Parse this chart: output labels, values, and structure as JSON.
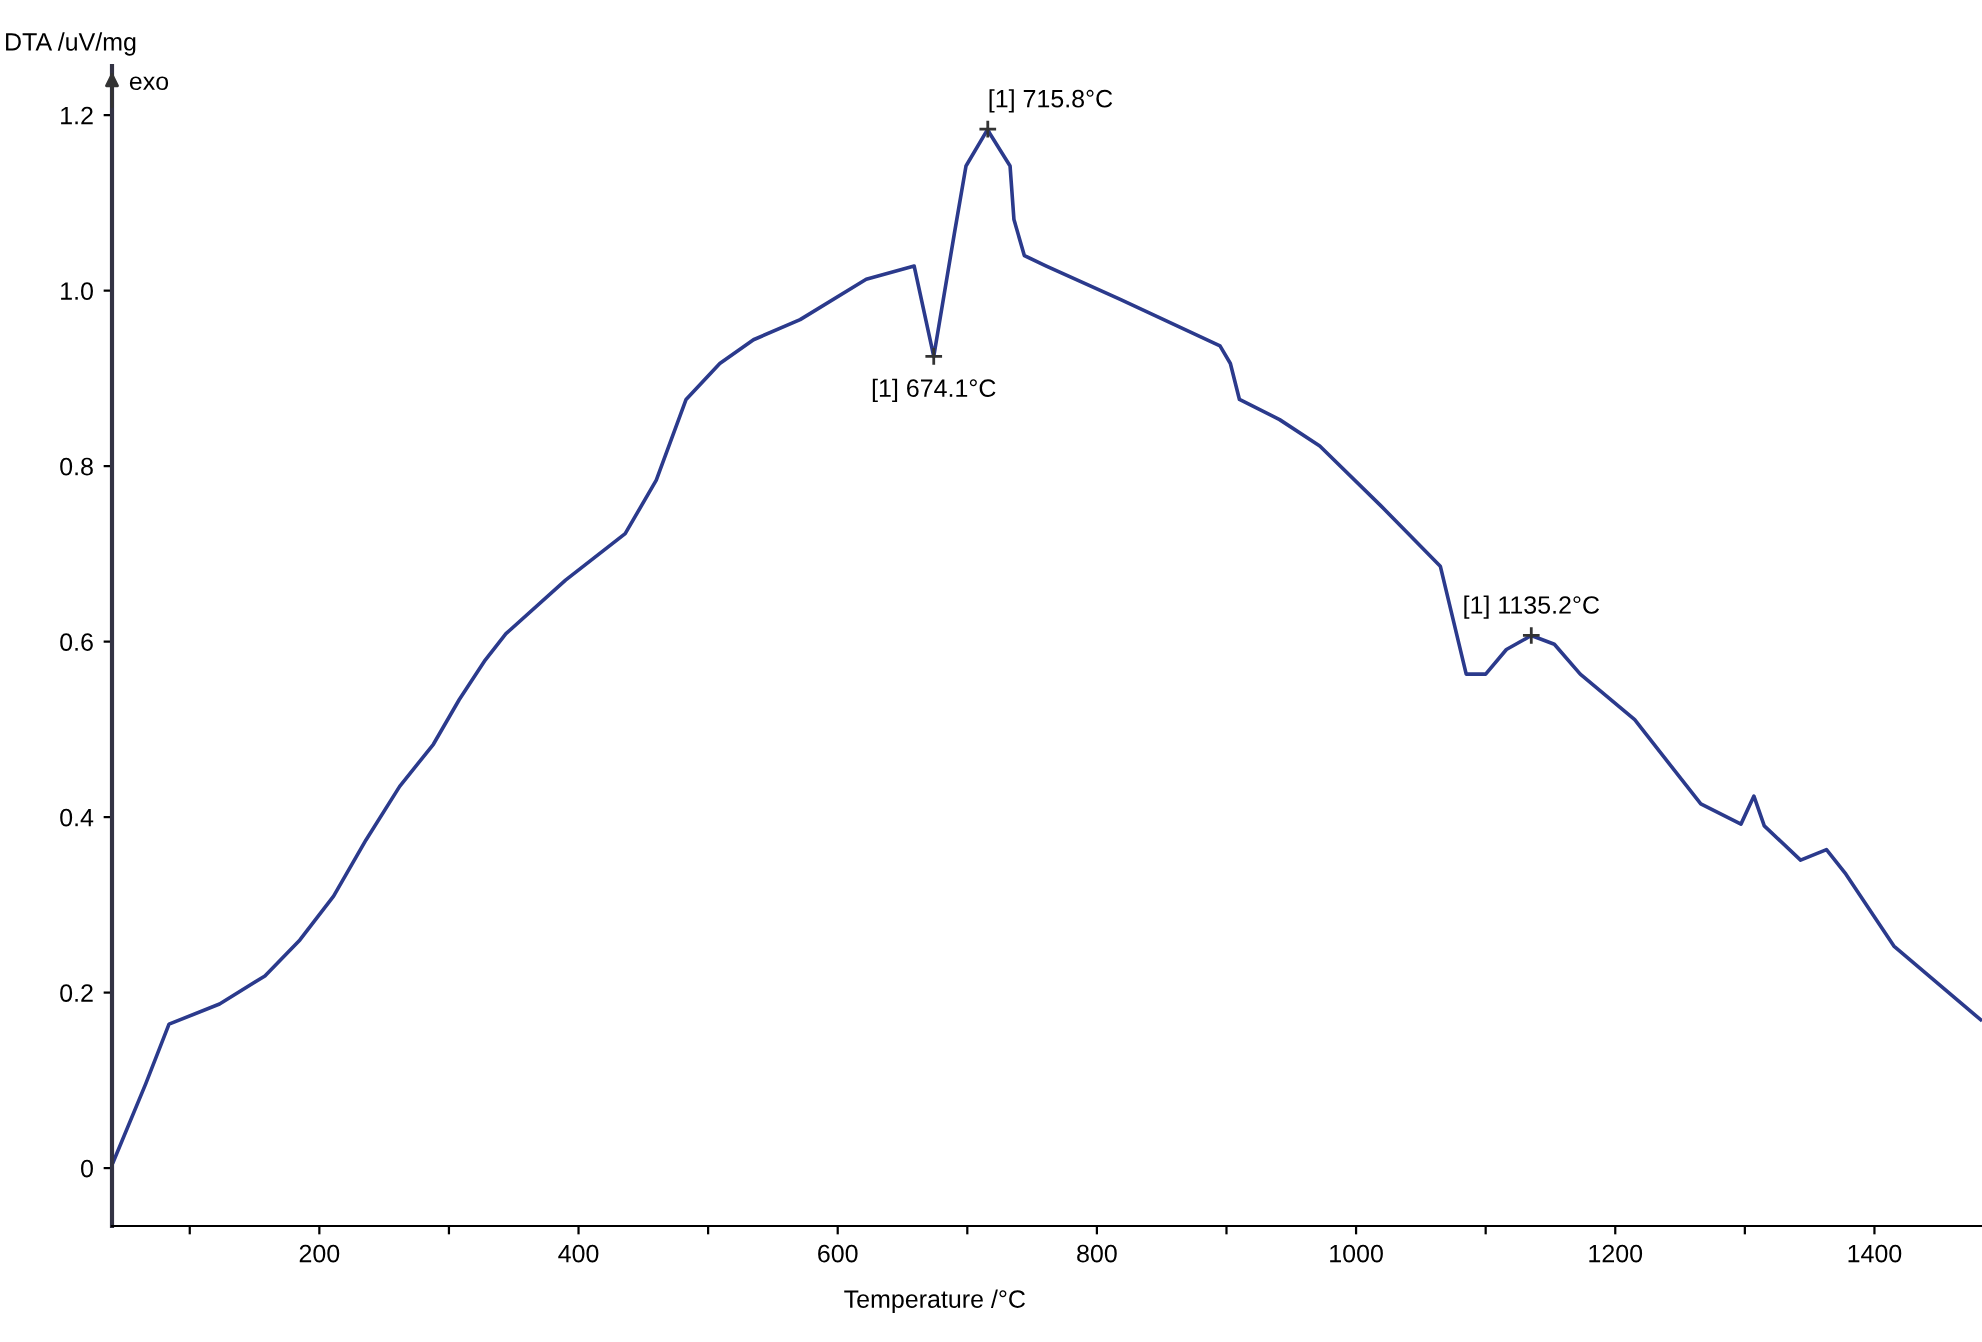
{
  "chart_data": {
    "type": "line",
    "xlabel": "Temperature /°C",
    "ylabel": "DTA /uV/mg",
    "annotations": [
      "exo",
      {
        "text": "[1] 715.8°C",
        "x": 715.8,
        "y": 1.184
      },
      {
        "text": "[1] 674.1°C",
        "x": 674.1,
        "y": 0.925
      },
      {
        "text": "[1] 1135.2°C",
        "x": 1135.2,
        "y": 0.607
      }
    ],
    "x": [
      41,
      66,
      84,
      123,
      158,
      185,
      211,
      236,
      262,
      288,
      308,
      328,
      344,
      390,
      436,
      460,
      483,
      509,
      535,
      571,
      622,
      659,
      674.1,
      690,
      699,
      715.8,
      717,
      733,
      736,
      744,
      761,
      818,
      895,
      903,
      910,
      941,
      972,
      1019,
      1065,
      1085,
      1100,
      1116,
      1135.2,
      1153,
      1173,
      1215,
      1266,
      1297,
      1307,
      1315,
      1343,
      1363,
      1378,
      1415,
      1482
    ],
    "series": [
      {
        "color": "#2b3a8c",
        "values": [
          0.007,
          0.096,
          0.164,
          0.187,
          0.219,
          0.26,
          0.31,
          0.374,
          0.435,
          0.483,
          0.534,
          0.579,
          0.609,
          0.67,
          0.723,
          0.784,
          0.876,
          0.917,
          0.944,
          0.967,
          1.013,
          1.028,
          0.925,
          1.065,
          1.142,
          1.184,
          1.18,
          1.142,
          1.081,
          1.04,
          1.028,
          0.99,
          0.937,
          0.917,
          0.876,
          0.853,
          0.823,
          0.755,
          0.686,
          0.563,
          0.563,
          0.591,
          0.607,
          0.597,
          0.563,
          0.511,
          0.415,
          0.392,
          0.424,
          0.39,
          0.351,
          0.363,
          0.335,
          0.253,
          0.169
        ]
      }
    ],
    "xlim": [
      40,
      1483
    ],
    "ylim": [
      -0.066,
      1.256
    ],
    "xticks": [
      {
        "value": 100,
        "label": null
      },
      200,
      {
        "value": 300,
        "label": null
      },
      400,
      {
        "value": 500,
        "label": null
      },
      600,
      {
        "value": 700,
        "label": null
      },
      800,
      {
        "value": 900,
        "label": null
      },
      1000,
      {
        "value": 1100,
        "label": null
      },
      1200,
      {
        "value": 1300,
        "label": null
      },
      1400
    ],
    "yticks": [
      0,
      0.2,
      0.4,
      0.6,
      0.8,
      {
        "value": 1.0,
        "label": "1.0"
      },
      1.2
    ],
    "grid": false,
    "legend": false,
    "marker": "none",
    "line_style": "solid"
  }
}
